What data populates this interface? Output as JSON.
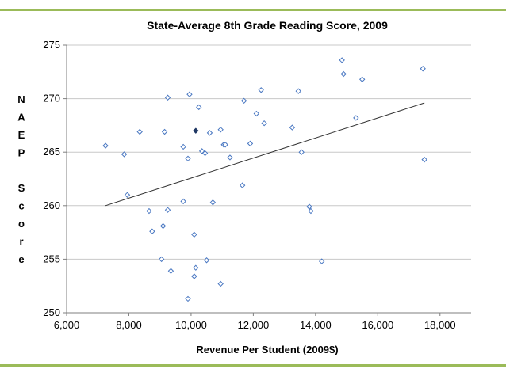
{
  "chart_data": {
    "type": "scatter",
    "title": "State-Average 8th Grade Reading Score, 2009",
    "xlabel": "Revenue Per Student (2009$)",
    "ylabel": "NAEP Score",
    "xlim": [
      6000,
      19000
    ],
    "ylim": [
      250,
      275
    ],
    "x_ticks": [
      "6,000",
      "8,000",
      "10,000",
      "12,000",
      "14,000",
      "16,000",
      "18,000"
    ],
    "x_tick_values": [
      6000,
      8000,
      10000,
      12000,
      14000,
      16000,
      18000
    ],
    "y_ticks": [
      "250",
      "255",
      "260",
      "265",
      "270",
      "275"
    ],
    "y_tick_values": [
      250,
      255,
      260,
      265,
      270,
      275
    ],
    "grid": "horizontal",
    "series": [
      {
        "marker": "open-diamond",
        "color": "#4a78c2",
        "points": [
          [
            7250,
            265.6
          ],
          [
            7850,
            264.8
          ],
          [
            7950,
            261.0
          ],
          [
            8350,
            266.9
          ],
          [
            8650,
            259.5
          ],
          [
            8750,
            257.6
          ],
          [
            9050,
            255.0
          ],
          [
            9100,
            258.1
          ],
          [
            9150,
            266.9
          ],
          [
            9250,
            270.1
          ],
          [
            9250,
            259.6
          ],
          [
            9350,
            253.9
          ],
          [
            9750,
            260.4
          ],
          [
            9750,
            265.5
          ],
          [
            9900,
            264.4
          ],
          [
            9900,
            251.3
          ],
          [
            9950,
            270.4
          ],
          [
            10100,
            253.4
          ],
          [
            10100,
            257.3
          ],
          [
            10150,
            254.2
          ],
          [
            10250,
            269.2
          ],
          [
            10350,
            265.1
          ],
          [
            10450,
            264.9
          ],
          [
            10500,
            254.9
          ],
          [
            10600,
            266.8
          ],
          [
            10700,
            260.3
          ],
          [
            10950,
            267.1
          ],
          [
            10950,
            252.7
          ],
          [
            11050,
            265.7
          ],
          [
            11100,
            265.7
          ],
          [
            11250,
            264.5
          ],
          [
            11650,
            261.9
          ],
          [
            11700,
            269.8
          ],
          [
            11900,
            265.8
          ],
          [
            12100,
            268.6
          ],
          [
            12250,
            270.8
          ],
          [
            12350,
            267.7
          ],
          [
            13250,
            267.3
          ],
          [
            13450,
            270.7
          ],
          [
            13550,
            265.0
          ],
          [
            13800,
            259.9
          ],
          [
            13850,
            259.5
          ],
          [
            14200,
            254.8
          ],
          [
            14850,
            273.6
          ],
          [
            14900,
            272.3
          ],
          [
            15300,
            268.2
          ],
          [
            15500,
            271.8
          ],
          [
            17450,
            272.8
          ],
          [
            17500,
            264.3
          ]
        ]
      },
      {
        "marker": "filled-diamond",
        "color": "#1f3864",
        "points": [
          [
            10150,
            267.0
          ]
        ]
      }
    ],
    "trendline": {
      "x": [
        7250,
        17500
      ],
      "y": [
        260.0,
        269.6
      ],
      "color": "#333333"
    }
  },
  "colors": {
    "frame_bar": "#9bbb59",
    "grid": "#c8c8c8",
    "axis": "#7f7f7f"
  }
}
